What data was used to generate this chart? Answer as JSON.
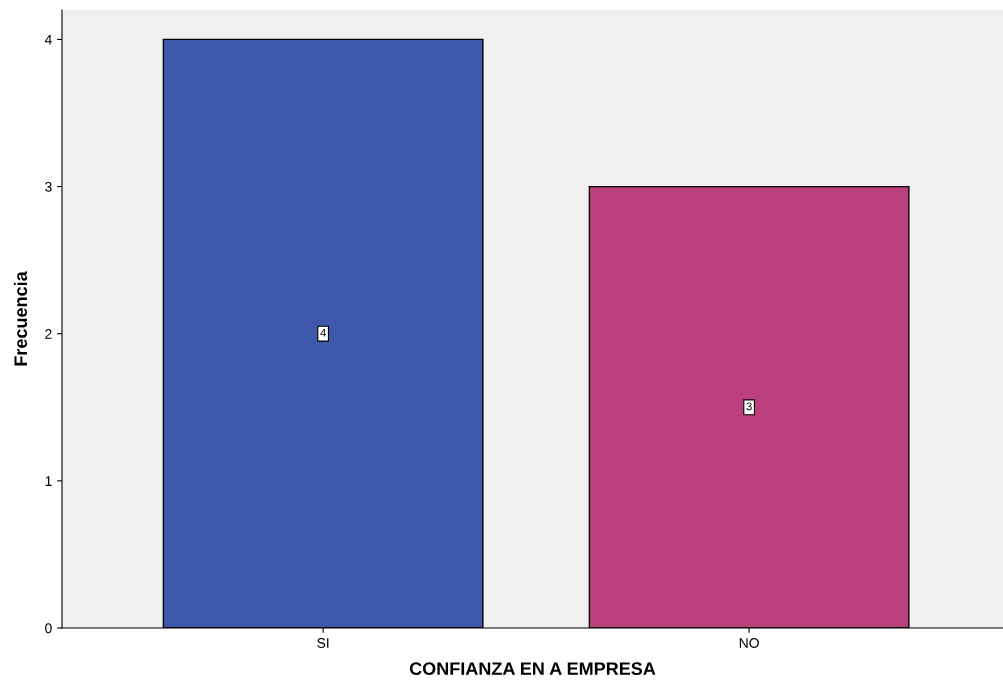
{
  "chart_data": {
    "type": "bar",
    "xlabel": "CONFIANZA EN A EMPRESA",
    "ylabel": "Frecuencia",
    "categories": [
      "SI",
      "NO"
    ],
    "values": [
      4,
      3
    ],
    "colors": [
      "#3e58ac",
      "#ba3f7c"
    ],
    "ylim": [
      0,
      4.2
    ],
    "yticks": [
      0,
      1,
      2,
      3,
      4
    ],
    "data_labels": true,
    "grid": false,
    "legend": false
  }
}
